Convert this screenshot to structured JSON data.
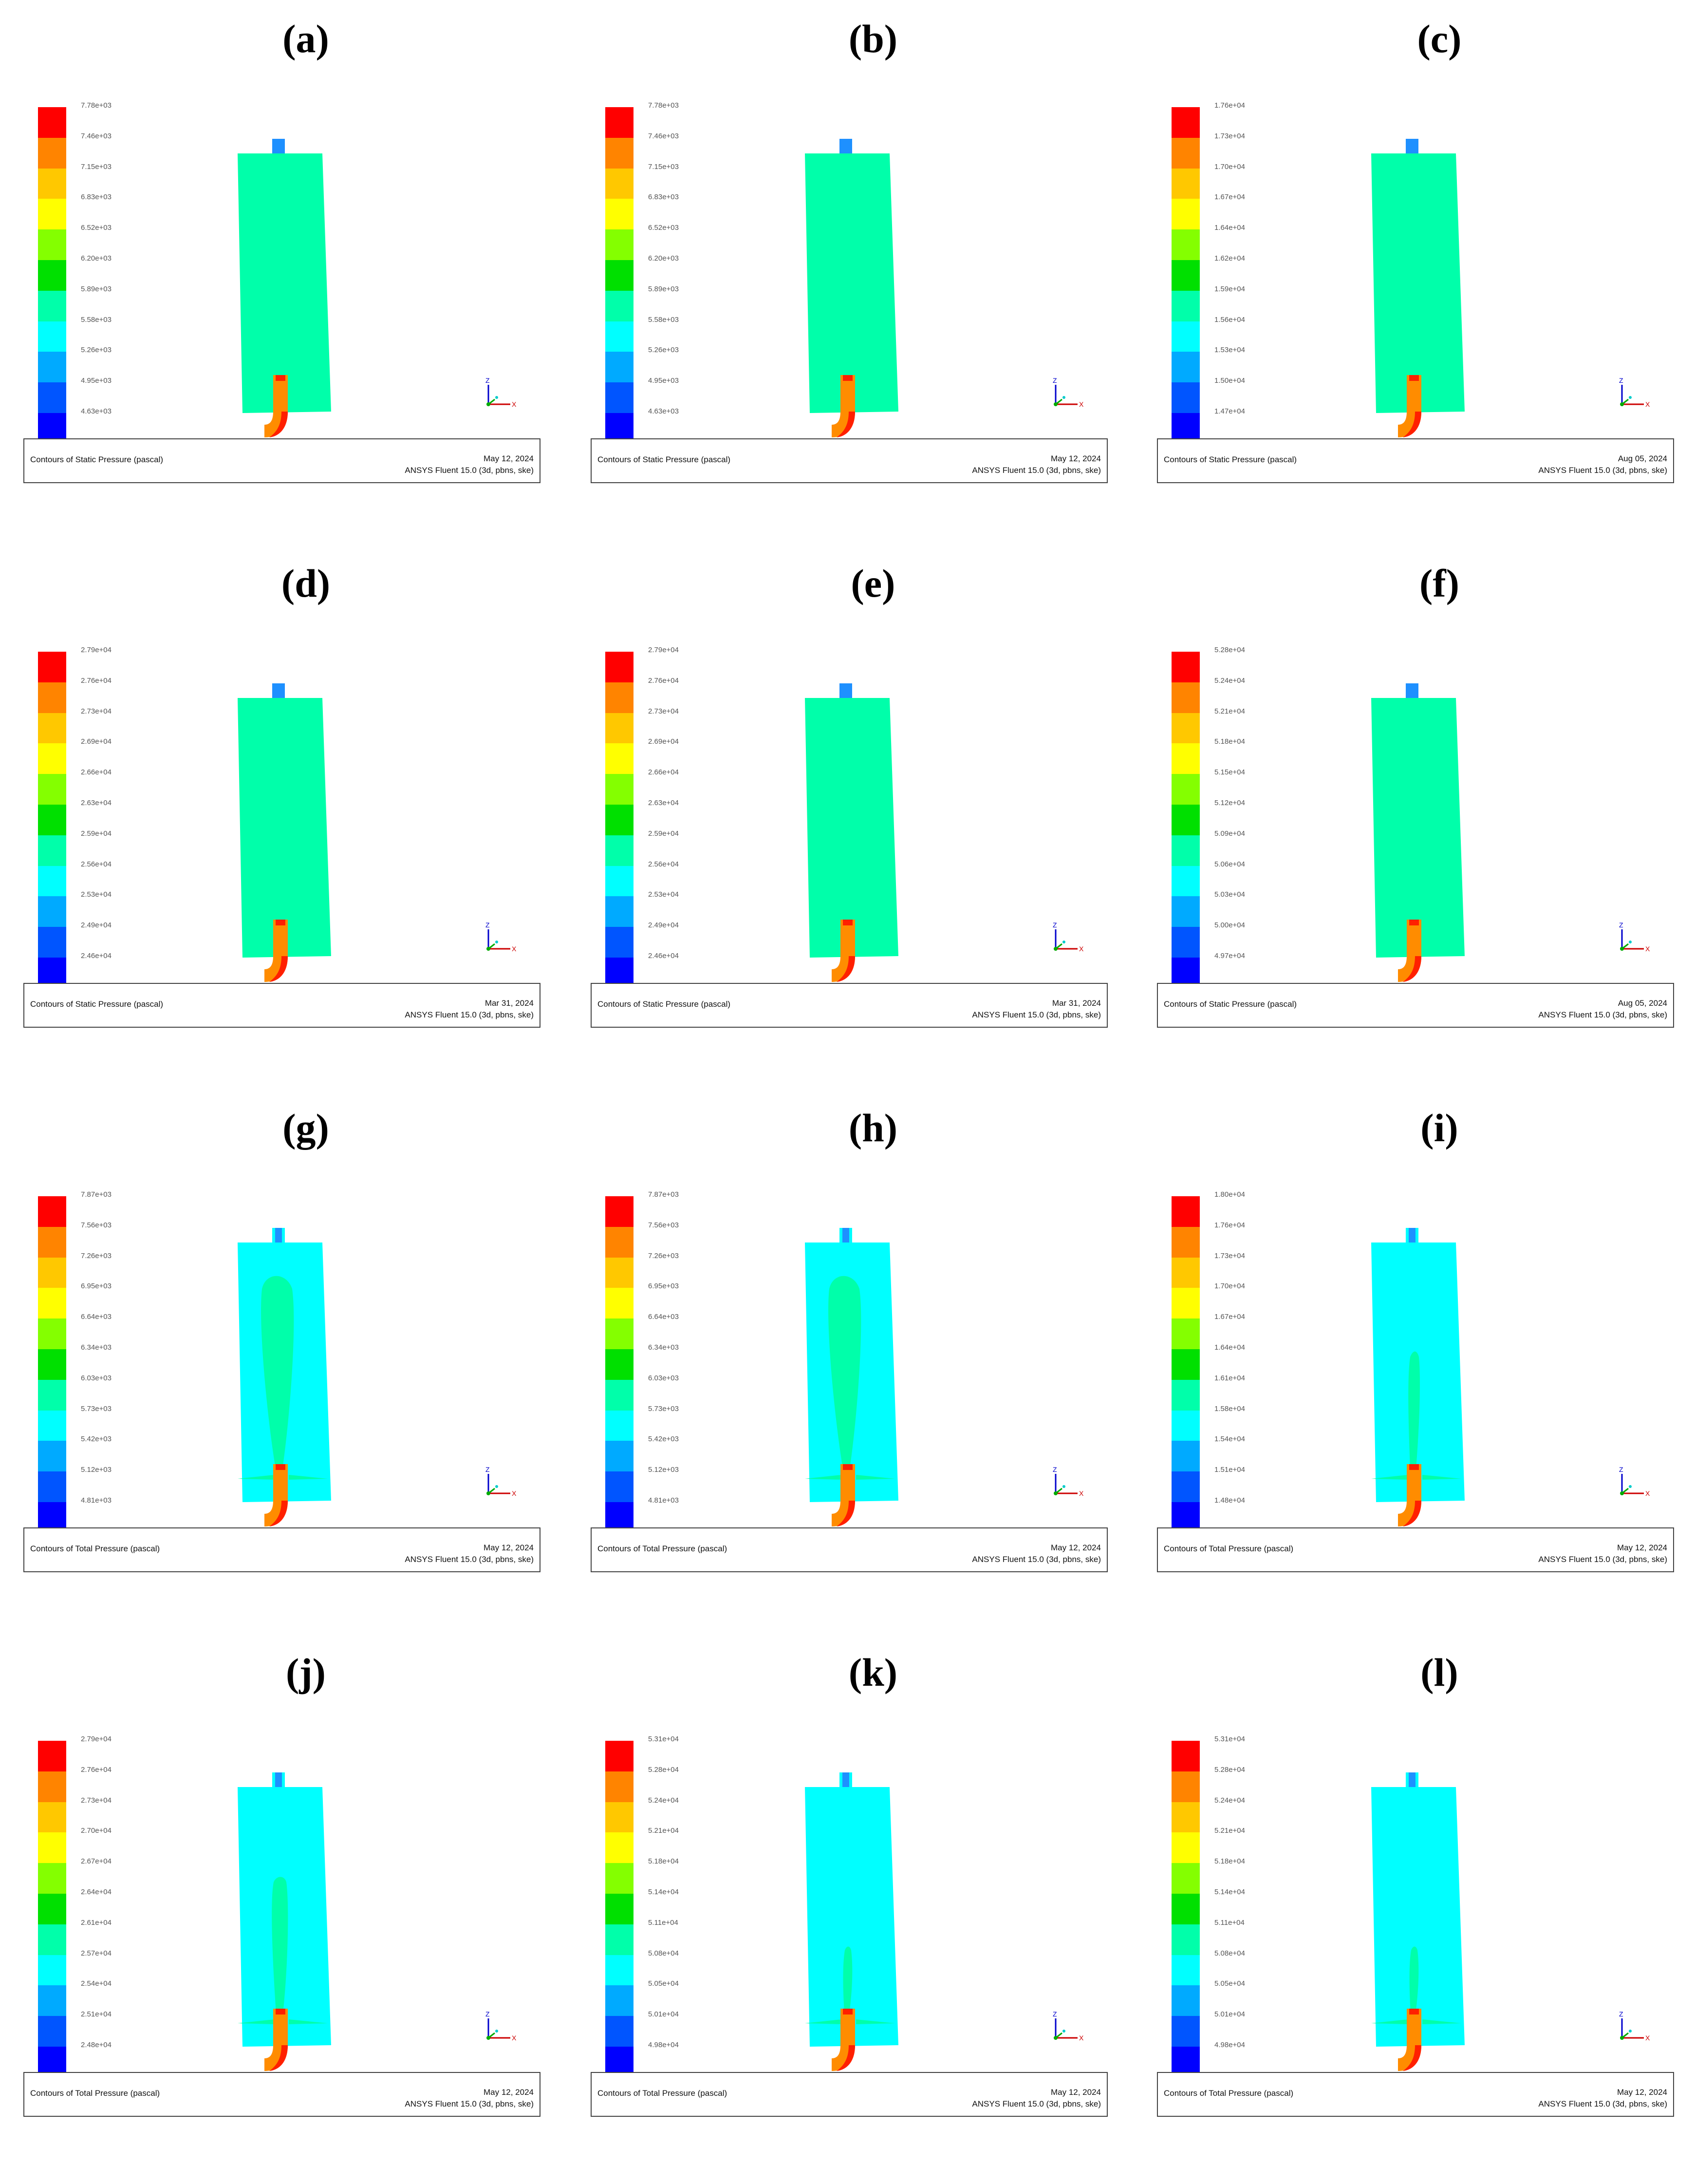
{
  "colors": {
    "legend": [
      "#ff0000",
      "#ff8400",
      "#ffc800",
      "#ffff00",
      "#84ff00",
      "#00e000",
      "#00ffaa",
      "#00ffff",
      "#00aaff",
      "#0055ff",
      "#0000ff"
    ],
    "static_body": "#00ffaa",
    "total_body": "#00ffff",
    "core": "#00ffaa",
    "nozzle": "#ff8c00",
    "outlet": "#1e90ff"
  },
  "panels": [
    {
      "label": "(a)",
      "legend": [
        "7.78e+03",
        "7.46e+03",
        "7.15e+03",
        "6.83e+03",
        "6.52e+03",
        "6.20e+03",
        "5.89e+03",
        "5.58e+03",
        "5.26e+03",
        "4.95e+03",
        "4.63e+03"
      ],
      "caption": "Contours of Static Pressure (pascal)",
      "date": "May 12, 2024",
      "version": "ANSYS Fluent 15.0 (3d, pbns, ske)"
    },
    {
      "label": "(b)",
      "legend": [
        "7.78e+03",
        "7.46e+03",
        "7.15e+03",
        "6.83e+03",
        "6.52e+03",
        "6.20e+03",
        "5.89e+03",
        "5.58e+03",
        "5.26e+03",
        "4.95e+03",
        "4.63e+03"
      ],
      "caption": "Contours of Static Pressure (pascal)",
      "date": "May 12, 2024",
      "version": "ANSYS Fluent 15.0 (3d, pbns, ske)"
    },
    {
      "label": "(c)",
      "legend": [
        "1.76e+04",
        "1.73e+04",
        "1.70e+04",
        "1.67e+04",
        "1.64e+04",
        "1.62e+04",
        "1.59e+04",
        "1.56e+04",
        "1.53e+04",
        "1.50e+04",
        "1.47e+04"
      ],
      "caption": "Contours of Static Pressure (pascal)",
      "date": "Aug 05, 2024",
      "version": "ANSYS Fluent 15.0 (3d, pbns, ske)"
    },
    {
      "label": "(d)",
      "legend": [
        "2.79e+04",
        "2.76e+04",
        "2.73e+04",
        "2.69e+04",
        "2.66e+04",
        "2.63e+04",
        "2.59e+04",
        "2.56e+04",
        "2.53e+04",
        "2.49e+04",
        "2.46e+04"
      ],
      "caption": "Contours of Static Pressure (pascal)",
      "date": "Mar 31, 2024",
      "version": "ANSYS Fluent 15.0 (3d, pbns, ske)"
    },
    {
      "label": "(e)",
      "legend": [
        "2.79e+04",
        "2.76e+04",
        "2.73e+04",
        "2.69e+04",
        "2.66e+04",
        "2.63e+04",
        "2.59e+04",
        "2.56e+04",
        "2.53e+04",
        "2.49e+04",
        "2.46e+04"
      ],
      "caption": "Contours of Static Pressure (pascal)",
      "date": "Mar 31, 2024",
      "version": "ANSYS Fluent 15.0 (3d, pbns, ske)"
    },
    {
      "label": "(f)",
      "legend": [
        "5.28e+04",
        "5.24e+04",
        "5.21e+04",
        "5.18e+04",
        "5.15e+04",
        "5.12e+04",
        "5.09e+04",
        "5.06e+04",
        "5.03e+04",
        "5.00e+04",
        "4.97e+04"
      ],
      "caption": "Contours of Static Pressure (pascal)",
      "date": "Aug 05, 2024",
      "version": "ANSYS Fluent 15.0 (3d, pbns, ske)"
    },
    {
      "label": "(g)",
      "legend": [
        "7.87e+03",
        "7.56e+03",
        "7.26e+03",
        "6.95e+03",
        "6.64e+03",
        "6.34e+03",
        "6.03e+03",
        "5.73e+03",
        "5.42e+03",
        "5.12e+03",
        "4.81e+03"
      ],
      "caption": "Contours of Total Pressure (pascal)",
      "date": "May 12, 2024",
      "version": "ANSYS Fluent 15.0 (3d, pbns, ske)"
    },
    {
      "label": "(h)",
      "legend": [
        "7.87e+03",
        "7.56e+03",
        "7.26e+03",
        "6.95e+03",
        "6.64e+03",
        "6.34e+03",
        "6.03e+03",
        "5.73e+03",
        "5.42e+03",
        "5.12e+03",
        "4.81e+03"
      ],
      "caption": "Contours of Total Pressure (pascal)",
      "date": "May 12, 2024",
      "version": "ANSYS Fluent 15.0 (3d, pbns, ske)"
    },
    {
      "label": "(i)",
      "legend": [
        "1.80e+04",
        "1.76e+04",
        "1.73e+04",
        "1.70e+04",
        "1.67e+04",
        "1.64e+04",
        "1.61e+04",
        "1.58e+04",
        "1.54e+04",
        "1.51e+04",
        "1.48e+04"
      ],
      "caption": "Contours of Total Pressure (pascal)",
      "date": "May 12, 2024",
      "version": "ANSYS Fluent 15.0 (3d, pbns, ske)"
    },
    {
      "label": "(j)",
      "legend": [
        "2.79e+04",
        "2.76e+04",
        "2.73e+04",
        "2.70e+04",
        "2.67e+04",
        "2.64e+04",
        "2.61e+04",
        "2.57e+04",
        "2.54e+04",
        "2.51e+04",
        "2.48e+04"
      ],
      "caption": "Contours of Total Pressure (pascal)",
      "date": "May 12, 2024",
      "version": "ANSYS Fluent 15.0 (3d, pbns, ske)"
    },
    {
      "label": "(k)",
      "legend": [
        "5.31e+04",
        "5.28e+04",
        "5.24e+04",
        "5.21e+04",
        "5.18e+04",
        "5.14e+04",
        "5.11e+04",
        "5.08e+04",
        "5.05e+04",
        "5.01e+04",
        "4.98e+04"
      ],
      "caption": "Contours of Total Pressure (pascal)",
      "date": "May 12, 2024",
      "version": "ANSYS Fluent 15.0 (3d, pbns, ske)"
    },
    {
      "label": "(l)",
      "legend": [
        "5.31e+04",
        "5.28e+04",
        "5.24e+04",
        "5.21e+04",
        "5.18e+04",
        "5.14e+04",
        "5.11e+04",
        "5.08e+04",
        "5.05e+04",
        "5.01e+04",
        "4.98e+04"
      ],
      "caption": "Contours of Total Pressure (pascal)",
      "date": "May 12, 2024",
      "version": "ANSYS Fluent 15.0 (3d, pbns, ske)"
    }
  ],
  "axis_labels": {
    "z": "Z",
    "y": "Y",
    "x": "X"
  }
}
